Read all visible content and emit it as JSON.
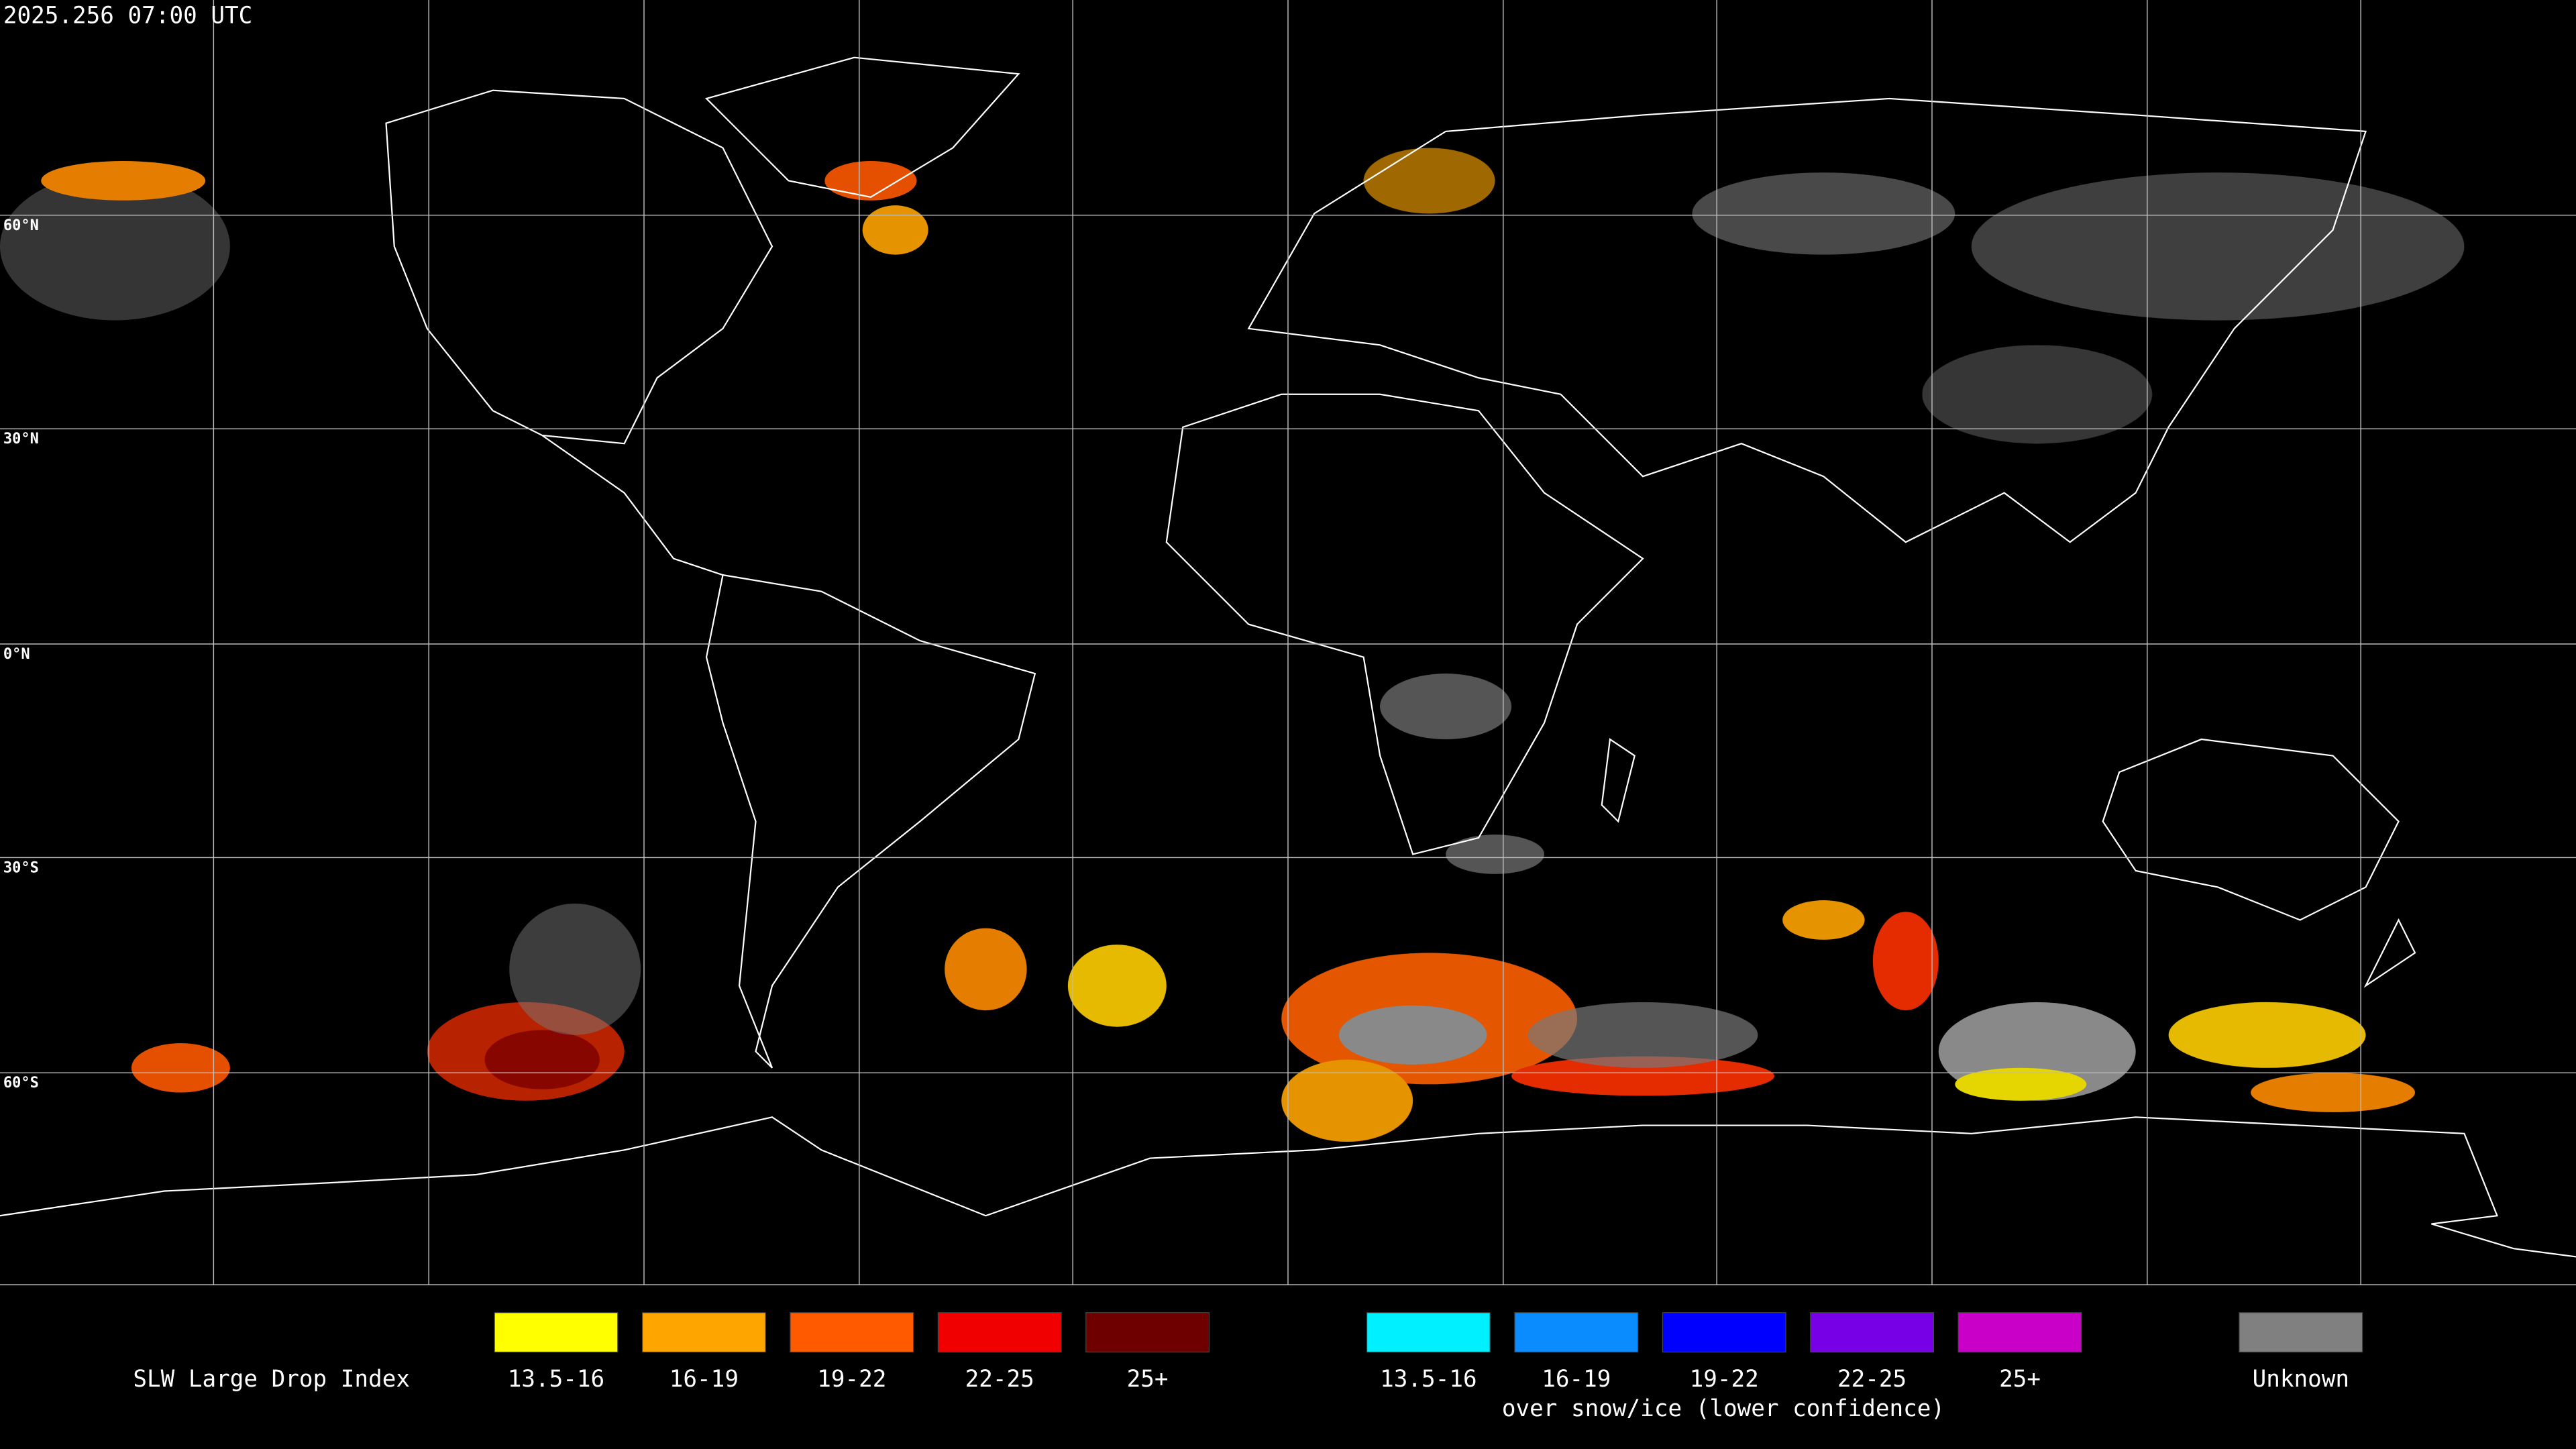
{
  "header": {
    "timestamp": "2025.256 07:00 UTC"
  },
  "map": {
    "lat_labels": [
      "60°N",
      "30°N",
      "0°N",
      "30°S",
      "60°S"
    ]
  },
  "legend": {
    "title": "SLW Large Drop Index",
    "items": [
      {
        "label": "13.5-16",
        "color": "#ffff00"
      },
      {
        "label": "16-19",
        "color": "#ffa500"
      },
      {
        "label": "19-22",
        "color": "#ff5a00"
      },
      {
        "label": "22-25",
        "color": "#f00000"
      },
      {
        "label": "25+",
        "color": "#6e0000"
      }
    ],
    "snow_items": [
      {
        "label": "13.5-16",
        "color": "#00f0ff"
      },
      {
        "label": "16-19",
        "color": "#0a8cff"
      },
      {
        "label": "19-22",
        "color": "#0000ff"
      },
      {
        "label": "22-25",
        "color": "#7800e6"
      },
      {
        "label": "25+",
        "color": "#c800c8"
      }
    ],
    "snow_caption": "over snow/ice (lower confidence)",
    "unknown": {
      "label": "Unknown",
      "color": "#808080"
    }
  }
}
